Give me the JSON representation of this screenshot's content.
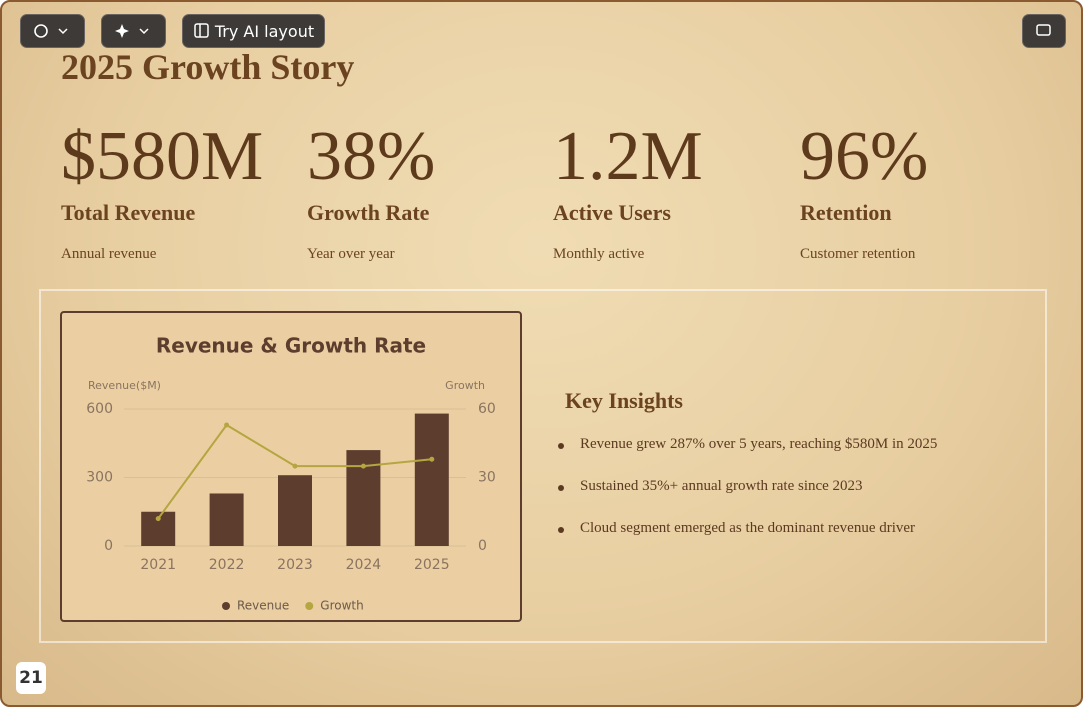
{
  "toolbar": {
    "ai_layout": "Try AI layout"
  },
  "title": "2025 Growth Story",
  "stats": [
    {
      "value": "$580M",
      "label": "Total Revenue",
      "caption": "Annual revenue"
    },
    {
      "value": "38%",
      "label": "Growth Rate",
      "caption": "Year over year"
    },
    {
      "value": "1.2M",
      "label": "Active Users",
      "caption": "Monthly active"
    },
    {
      "value": "96%",
      "label": "Retention",
      "caption": "Customer retention"
    }
  ],
  "chart_data": {
    "type": "bar",
    "title": "Revenue & Growth Rate",
    "y_label": "Revenue($M)",
    "y2_label": "Growth",
    "categories": [
      "2021",
      "2022",
      "2023",
      "2024",
      "2025"
    ],
    "series": [
      {
        "name": "Revenue",
        "type": "bar",
        "color": "#5c3d2e",
        "values": [
          150,
          230,
          310,
          420,
          580
        ]
      },
      {
        "name": "Growth",
        "type": "line",
        "axis": "y2",
        "color": "#b5a642",
        "values": [
          12,
          53,
          35,
          35,
          38
        ]
      }
    ],
    "ylim": [
      0,
      600
    ],
    "yticks": [
      0,
      300,
      600
    ],
    "y2lim": [
      0,
      60
    ],
    "y2ticks": [
      0,
      30,
      60
    ],
    "grid": true
  },
  "insights": {
    "title": "Key Insights",
    "items": [
      "Revenue grew 287% over 5 years, reaching $580M in 2025",
      "Sustained 35%+ annual growth rate since 2023",
      "Cloud segment emerged as the dominant revenue driver"
    ]
  },
  "page_number": "21"
}
